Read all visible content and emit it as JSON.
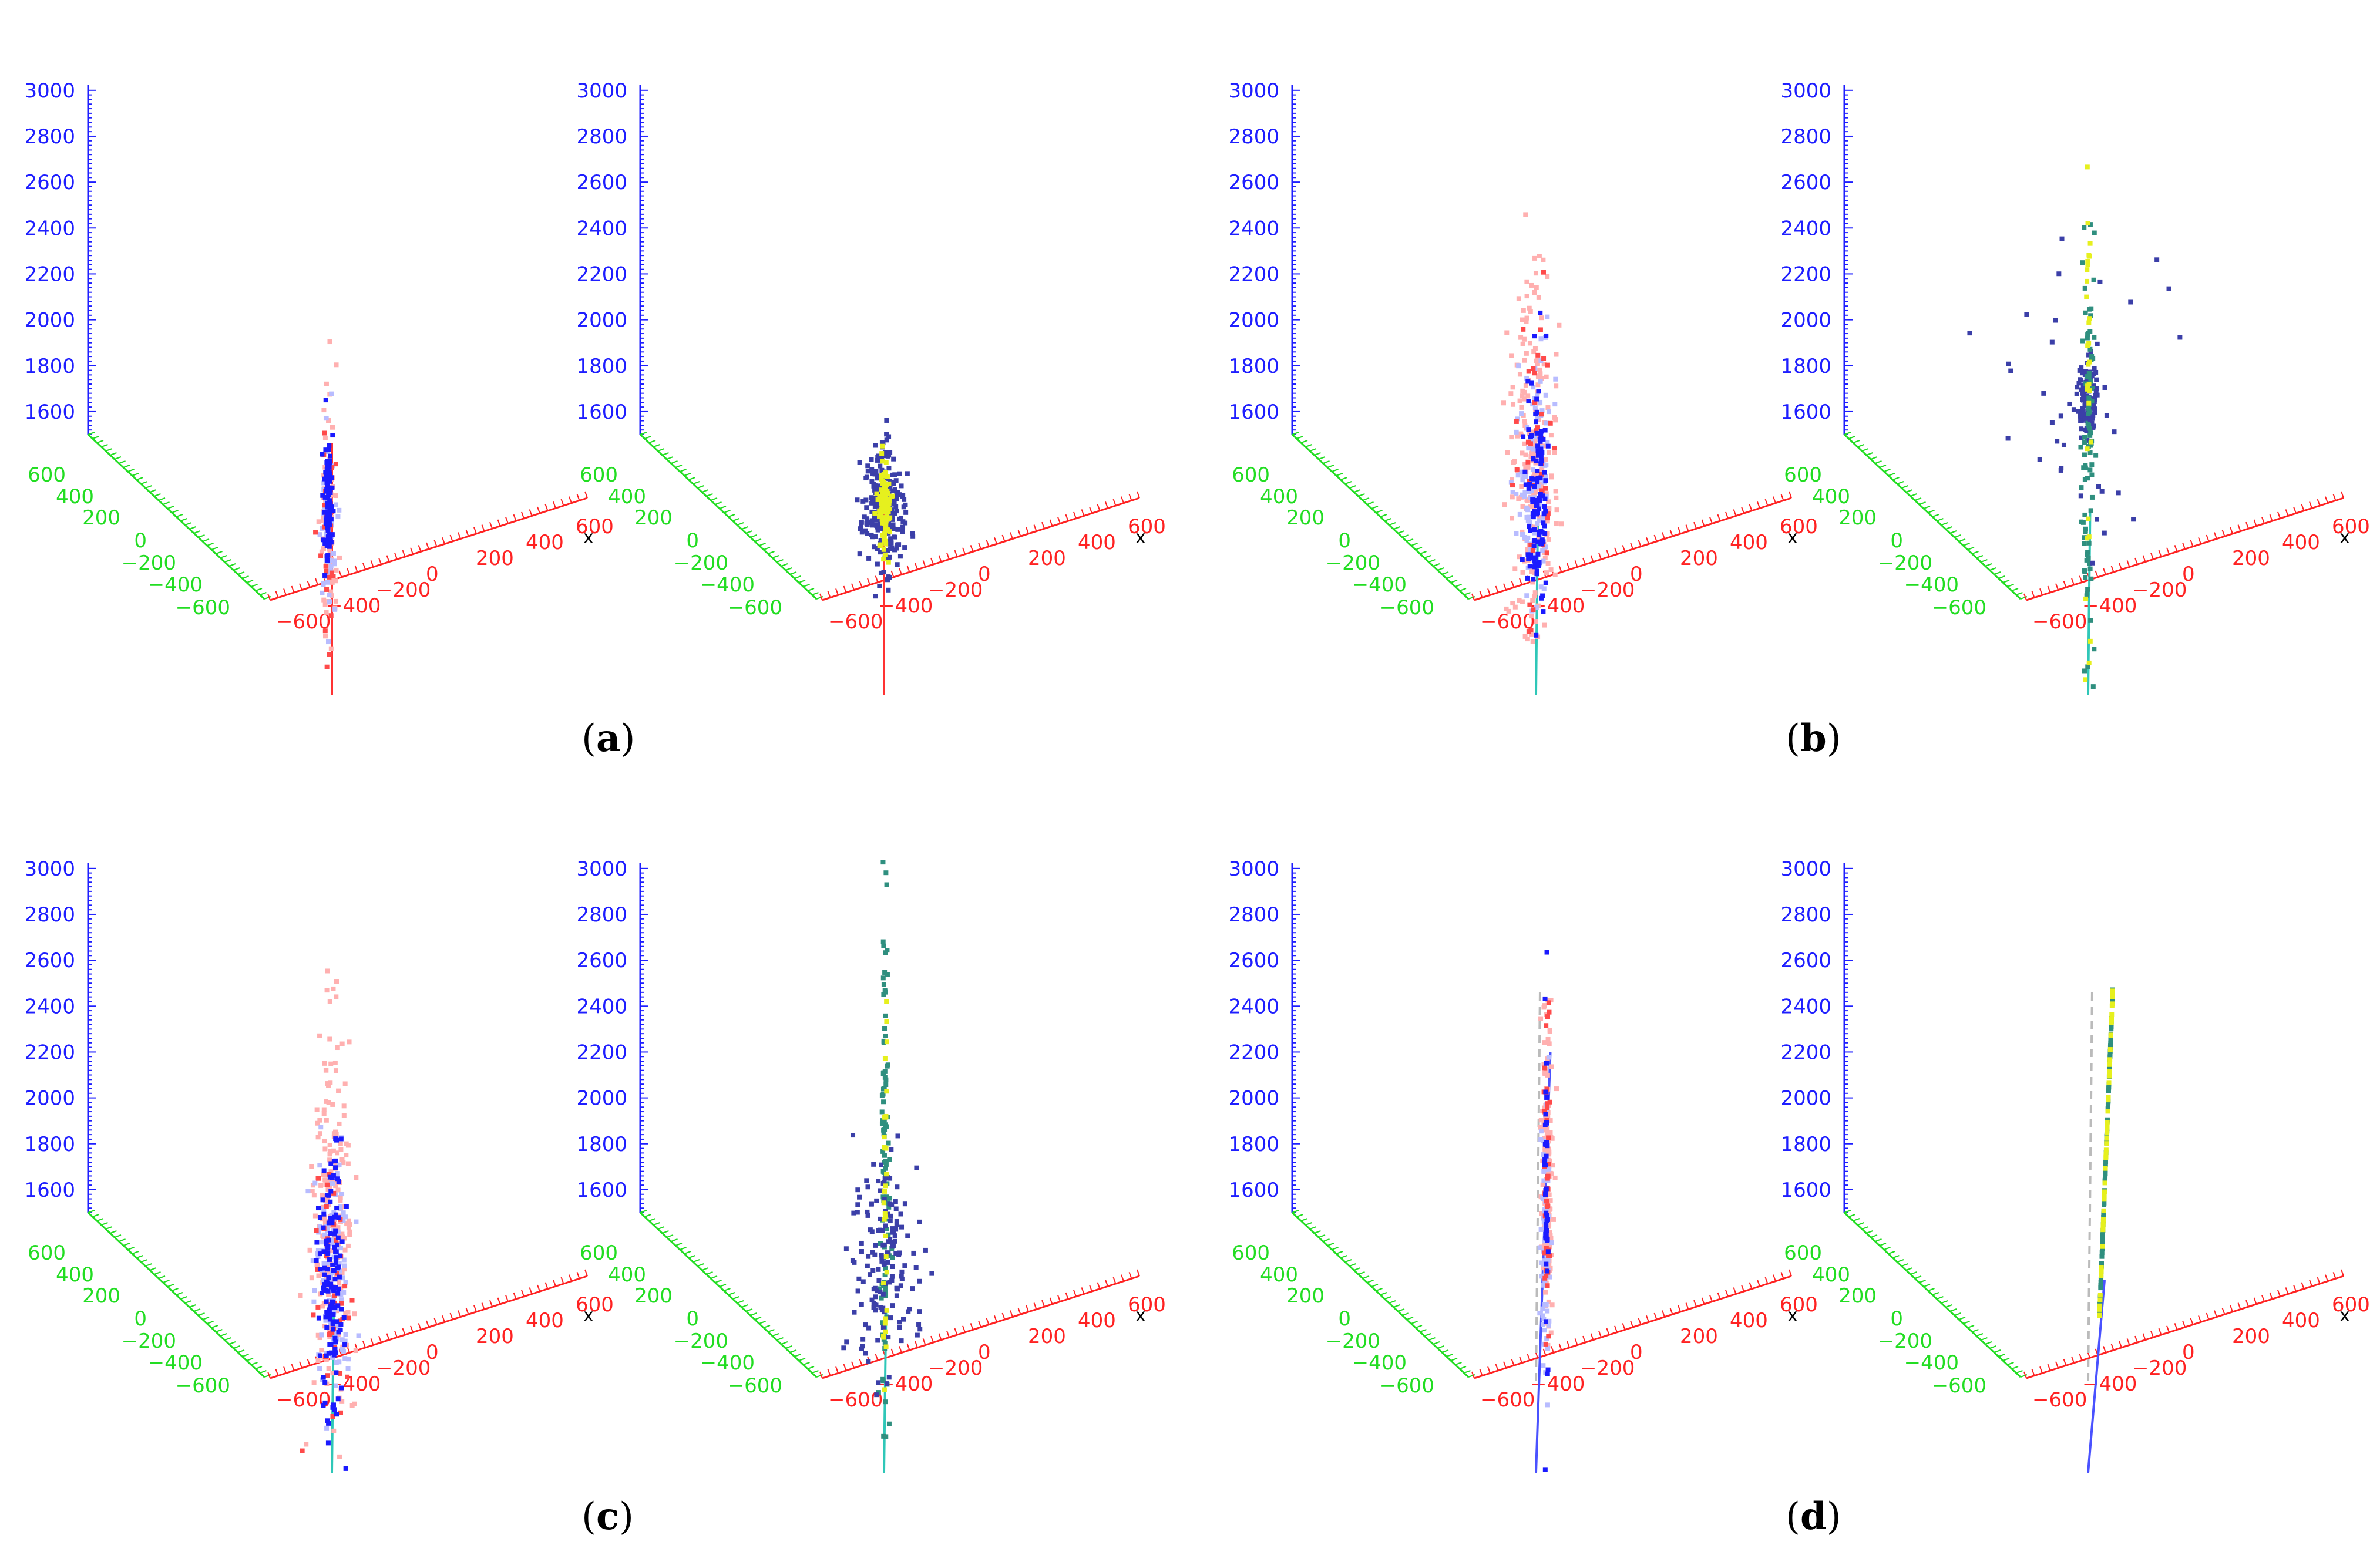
{
  "captions": [
    "a",
    "b",
    "c",
    "d"
  ],
  "colors": {
    "z_axis": "#1e1eff",
    "y_axis": "#22dd22",
    "x_axis": "#ff2222",
    "x_tag": "#000000",
    "track_red": "#ff3333",
    "track_cyan": "#2fc7b8",
    "track_blue": "#4a52ff",
    "track_grey": "#bbbbbb",
    "dot_red": "#ff4a4a",
    "dot_pink": "#ffb0b0",
    "dot_blue": "#1a1aff",
    "dot_lightblue": "#b8bcff",
    "dot_navy": "#3b3fa8",
    "dot_teal": "#2f8f7f",
    "dot_yellow": "#e6f01e"
  },
  "chart_data": [
    {
      "type": "scatter",
      "panel": "a",
      "side": "left",
      "xlabel": "x",
      "z_ticks": [
        "1600",
        "1800",
        "2000",
        "2200",
        "2400",
        "2600",
        "2800",
        "3000"
      ],
      "y_ticks": [
        "600",
        "400",
        "200",
        "0",
        "−200",
        "−400",
        "−600"
      ],
      "x_ticks": [
        "−600",
        "−400",
        "−200",
        "0",
        "200",
        "400",
        "600"
      ],
      "track": {
        "color": "track_red",
        "from": [
          0,
          0,
          1100
        ],
        "to": [
          0,
          0,
          2200
        ]
      },
      "clusters": [
        {
          "color": "dot_pink",
          "count": 100,
          "center": [
            -10,
            10,
            1850
          ],
          "sigma": [
            15,
            15,
            240
          ]
        },
        {
          "color": "dot_lightblue",
          "count": 50,
          "center": [
            -10,
            10,
            1850
          ],
          "sigma": [
            15,
            15,
            230
          ]
        },
        {
          "color": "dot_red",
          "count": 30,
          "center": [
            -10,
            10,
            1750
          ],
          "sigma": [
            18,
            18,
            300
          ]
        },
        {
          "color": "dot_blue",
          "count": 90,
          "center": [
            -10,
            10,
            1950
          ],
          "sigma": [
            8,
            8,
            140
          ]
        }
      ]
    },
    {
      "type": "scatter",
      "panel": "a",
      "side": "right",
      "xlabel": "x",
      "z_ticks": [
        "1600",
        "1800",
        "2000",
        "2200",
        "2400",
        "2600",
        "2800",
        "3000"
      ],
      "y_ticks": [
        "600",
        "400",
        "200",
        "0",
        "−200",
        "−400",
        "−600"
      ],
      "x_ticks": [
        "−600",
        "−400",
        "−200",
        "0",
        "200",
        "400",
        "600"
      ],
      "track": {
        "color": "track_red",
        "from": [
          0,
          0,
          1100
        ],
        "to": [
          0,
          0,
          1950
        ]
      },
      "clusters": [
        {
          "color": "dot_navy",
          "count": 260,
          "center": [
            0,
            0,
            1920
          ],
          "sigma": [
            40,
            40,
            140
          ]
        },
        {
          "color": "dot_yellow",
          "count": 120,
          "center": [
            0,
            0,
            1920
          ],
          "sigma": [
            12,
            12,
            90
          ]
        }
      ]
    },
    {
      "type": "scatter",
      "panel": "b",
      "side": "left",
      "xlabel": "x",
      "z_ticks": [
        "1600",
        "1800",
        "2000",
        "2200",
        "2400",
        "2600",
        "2800",
        "3000"
      ],
      "y_ticks": [
        "600",
        "400",
        "200",
        "0",
        "−200",
        "−400",
        "−600"
      ],
      "x_ticks": [
        "−600",
        "−400",
        "−200",
        "0",
        "200",
        "400",
        "600"
      ],
      "track": {
        "color": "track_cyan",
        "from": [
          0,
          0,
          1100
        ],
        "to": [
          10,
          0,
          1950
        ]
      },
      "clusters": [
        {
          "color": "dot_pink",
          "count": 220,
          "center": [
            -10,
            10,
            2150
          ],
          "sigma": [
            45,
            45,
            380
          ]
        },
        {
          "color": "dot_lightblue",
          "count": 110,
          "center": [
            0,
            0,
            2050
          ],
          "sigma": [
            40,
            40,
            300
          ]
        },
        {
          "color": "dot_red",
          "count": 40,
          "center": [
            0,
            0,
            2100
          ],
          "sigma": [
            45,
            45,
            380
          ]
        },
        {
          "color": "dot_blue",
          "count": 110,
          "center": [
            0,
            0,
            2000
          ],
          "sigma": [
            20,
            20,
            260
          ]
        }
      ]
    },
    {
      "type": "scatter",
      "panel": "b",
      "side": "right",
      "xlabel": "x",
      "z_ticks": [
        "1600",
        "1800",
        "2000",
        "2200",
        "2400",
        "2600",
        "2800",
        "3000"
      ],
      "y_ticks": [
        "600",
        "400",
        "200",
        "0",
        "−200",
        "−400",
        "−600"
      ],
      "x_ticks": [
        "−600",
        "−400",
        "−200",
        "0",
        "200",
        "400",
        "600"
      ],
      "track": {
        "color": "track_cyan",
        "from": [
          0,
          0,
          1100
        ],
        "to": [
          10,
          0,
          1900
        ]
      },
      "clusters": [
        {
          "color": "dot_navy",
          "count": 100,
          "center": [
            0,
            0,
            2400
          ],
          "sigma": [
            18,
            18,
            80
          ]
        },
        {
          "color": "dot_teal",
          "count": 90,
          "center": [
            0,
            0,
            2200
          ],
          "sigma": [
            12,
            12,
            500
          ]
        },
        {
          "color": "dot_yellow",
          "count": 30,
          "center": [
            0,
            0,
            2300
          ],
          "sigma": [
            6,
            6,
            550
          ]
        },
        {
          "color": "dot_navy",
          "count": 40,
          "center": [
            0,
            0,
            2300
          ],
          "sigma": [
            160,
            160,
            350
          ]
        }
      ]
    },
    {
      "type": "scatter",
      "panel": "c",
      "side": "left",
      "xlabel": "x",
      "z_ticks": [
        "1600",
        "1800",
        "2000",
        "2200",
        "2400",
        "2600",
        "2800",
        "3000"
      ],
      "y_ticks": [
        "600",
        "400",
        "200",
        "0",
        "−200",
        "−400",
        "−600"
      ],
      "x_ticks": [
        "−600",
        "−400",
        "−200",
        "0",
        "200",
        "400",
        "600"
      ],
      "track": {
        "color": "track_cyan",
        "from": [
          0,
          0,
          1100
        ],
        "to": [
          10,
          0,
          1900
        ]
      },
      "clusters": [
        {
          "color": "dot_pink",
          "count": 230,
          "center": [
            0,
            0,
            2150
          ],
          "sigma": [
            40,
            40,
            420
          ]
        },
        {
          "color": "dot_lightblue",
          "count": 120,
          "center": [
            0,
            0,
            1950
          ],
          "sigma": [
            40,
            40,
            240
          ]
        },
        {
          "color": "dot_red",
          "count": 40,
          "center": [
            0,
            0,
            1850
          ],
          "sigma": [
            40,
            40,
            300
          ]
        },
        {
          "color": "dot_blue",
          "count": 140,
          "center": [
            0,
            0,
            1900
          ],
          "sigma": [
            22,
            22,
            280
          ]
        }
      ]
    },
    {
      "type": "scatter",
      "panel": "c",
      "side": "right",
      "xlabel": "x",
      "z_ticks": [
        "1600",
        "1800",
        "2000",
        "2200",
        "2400",
        "2600",
        "2800",
        "3000"
      ],
      "y_ticks": [
        "600",
        "400",
        "200",
        "0",
        "−200",
        "−400",
        "−600"
      ],
      "x_ticks": [
        "−600",
        "−400",
        "−200",
        "0",
        "200",
        "400",
        "600"
      ],
      "track": {
        "color": "track_cyan",
        "from": [
          0,
          0,
          1100
        ],
        "to": [
          10,
          0,
          1800
        ]
      },
      "clusters": [
        {
          "color": "dot_teal",
          "count": 110,
          "center": [
            5,
            0,
            2350
          ],
          "sigma": [
            8,
            8,
            600
          ]
        },
        {
          "color": "dot_navy",
          "count": 160,
          "center": [
            0,
            0,
            2000
          ],
          "sigma": [
            70,
            70,
            250
          ]
        },
        {
          "color": "dot_yellow",
          "count": 30,
          "center": [
            5,
            0,
            2300
          ],
          "sigma": [
            5,
            5,
            550
          ]
        }
      ]
    },
    {
      "type": "scatter",
      "panel": "d",
      "side": "left",
      "xlabel": "x",
      "z_ticks": [
        "1600",
        "1800",
        "2000",
        "2200",
        "2400",
        "2600",
        "2800",
        "3000"
      ],
      "y_ticks": [
        "600",
        "400",
        "200",
        "0",
        "−200",
        "−400",
        "−600"
      ],
      "x_ticks": [
        "−600",
        "−400",
        "−200",
        "0",
        "200",
        "400",
        "600"
      ],
      "track": {
        "color": "track_blue",
        "from": [
          0,
          0,
          1100
        ],
        "to": [
          70,
          0,
          2900
        ]
      },
      "guide": {
        "color": "track_grey",
        "from": [
          0,
          0,
          1500
        ],
        "to": [
          20,
          0,
          3200
        ]
      },
      "clusters": [
        {
          "color": "dot_pink",
          "count": 160,
          "center": [
            55,
            0,
            2400
          ],
          "sigma": [
            10,
            10,
            320
          ]
        },
        {
          "color": "dot_lightblue",
          "count": 70,
          "center": [
            45,
            0,
            2100
          ],
          "sigma": [
            10,
            10,
            300
          ]
        },
        {
          "color": "dot_red",
          "count": 40,
          "center": [
            55,
            0,
            2450
          ],
          "sigma": [
            6,
            6,
            330
          ]
        },
        {
          "color": "dot_blue",
          "count": 40,
          "center": [
            50,
            0,
            2300
          ],
          "sigma": [
            4,
            4,
            380
          ]
        }
      ]
    },
    {
      "type": "scatter",
      "panel": "d",
      "side": "right",
      "xlabel": "x",
      "z_ticks": [
        "1600",
        "1800",
        "2000",
        "2200",
        "2400",
        "2600",
        "2800",
        "3000"
      ],
      "y_ticks": [
        "600",
        "400",
        "200",
        "0",
        "−200",
        "−400",
        "−600"
      ],
      "x_ticks": [
        "−600",
        "−400",
        "−200",
        "0",
        "200",
        "400",
        "600"
      ],
      "track": {
        "color": "track_blue",
        "from": [
          0,
          0,
          1100
        ],
        "to": [
          80,
          0,
          1900
        ]
      },
      "guide": {
        "color": "track_grey",
        "from": [
          0,
          0,
          1500
        ],
        "to": [
          20,
          0,
          3200
        ]
      },
      "clusters": [
        {
          "color": "dot_teal",
          "count": 110,
          "center": [
            0,
            0,
            0
          ],
          "sigma": [
            0,
            0,
            0
          ],
          "along": {
            "from": [
              55,
              0,
              1750
            ],
            "to": [
              120,
              0,
              3150
            ]
          }
        },
        {
          "color": "dot_yellow",
          "count": 60,
          "center": [
            0,
            0,
            0
          ],
          "sigma": [
            0,
            0,
            0
          ],
          "along": {
            "from": [
              55,
              0,
              1750
            ],
            "to": [
              120,
              0,
              3150
            ]
          }
        }
      ]
    }
  ]
}
